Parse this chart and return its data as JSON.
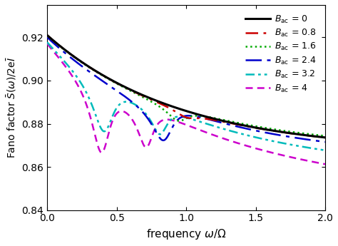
{
  "xlabel": "frequency ω/Ω",
  "ylabel": "Fano factor $\\bar{S}(\\omega)$/2e$\\bar{I}$",
  "xlim": [
    0,
    2.0
  ],
  "ylim": [
    0.84,
    0.935
  ],
  "yticks": [
    0.84,
    0.86,
    0.88,
    0.9,
    0.92
  ],
  "xticks": [
    0.0,
    0.5,
    1.0,
    1.5,
    2.0
  ],
  "F0": 0.921,
  "F_inf_base": 0.867,
  "tau_base": 1.05,
  "lines": [
    {
      "Bac": 0.0,
      "color": "#000000",
      "lw": 2.2,
      "ls": "solid",
      "label": "$B_{\\mathrm{ac}}$ = 0",
      "dashes": []
    },
    {
      "Bac": 0.8,
      "color": "#cc0000",
      "lw": 1.8,
      "ls": "dashed",
      "label": "$B_{\\mathrm{ac}}$ = 0.8",
      "dashes": [
        7,
        3,
        1.5,
        3
      ]
    },
    {
      "Bac": 1.6,
      "color": "#00aa00",
      "lw": 1.8,
      "ls": "dotted",
      "label": "$B_{\\mathrm{ac}}$ = 1.6",
      "dashes": [
        1.5,
        2
      ]
    },
    {
      "Bac": 2.4,
      "color": "#0000cc",
      "lw": 1.8,
      "ls": "dashdot",
      "label": "$B_{\\mathrm{ac}}$ = 2.4",
      "dashes": [
        9,
        3,
        2,
        3
      ]
    },
    {
      "Bac": 3.2,
      "color": "#00bbbb",
      "lw": 1.8,
      "ls": "dashdot",
      "label": "$B_{\\mathrm{ac}}$ = 3.2",
      "dashes": [
        5,
        2,
        1,
        2,
        1,
        2
      ]
    },
    {
      "Bac": 4.0,
      "color": "#cc00cc",
      "lw": 1.8,
      "ls": "dashed",
      "label": "$B_{\\mathrm{ac}}$ = 4",
      "dashes": [
        4,
        2
      ]
    }
  ]
}
